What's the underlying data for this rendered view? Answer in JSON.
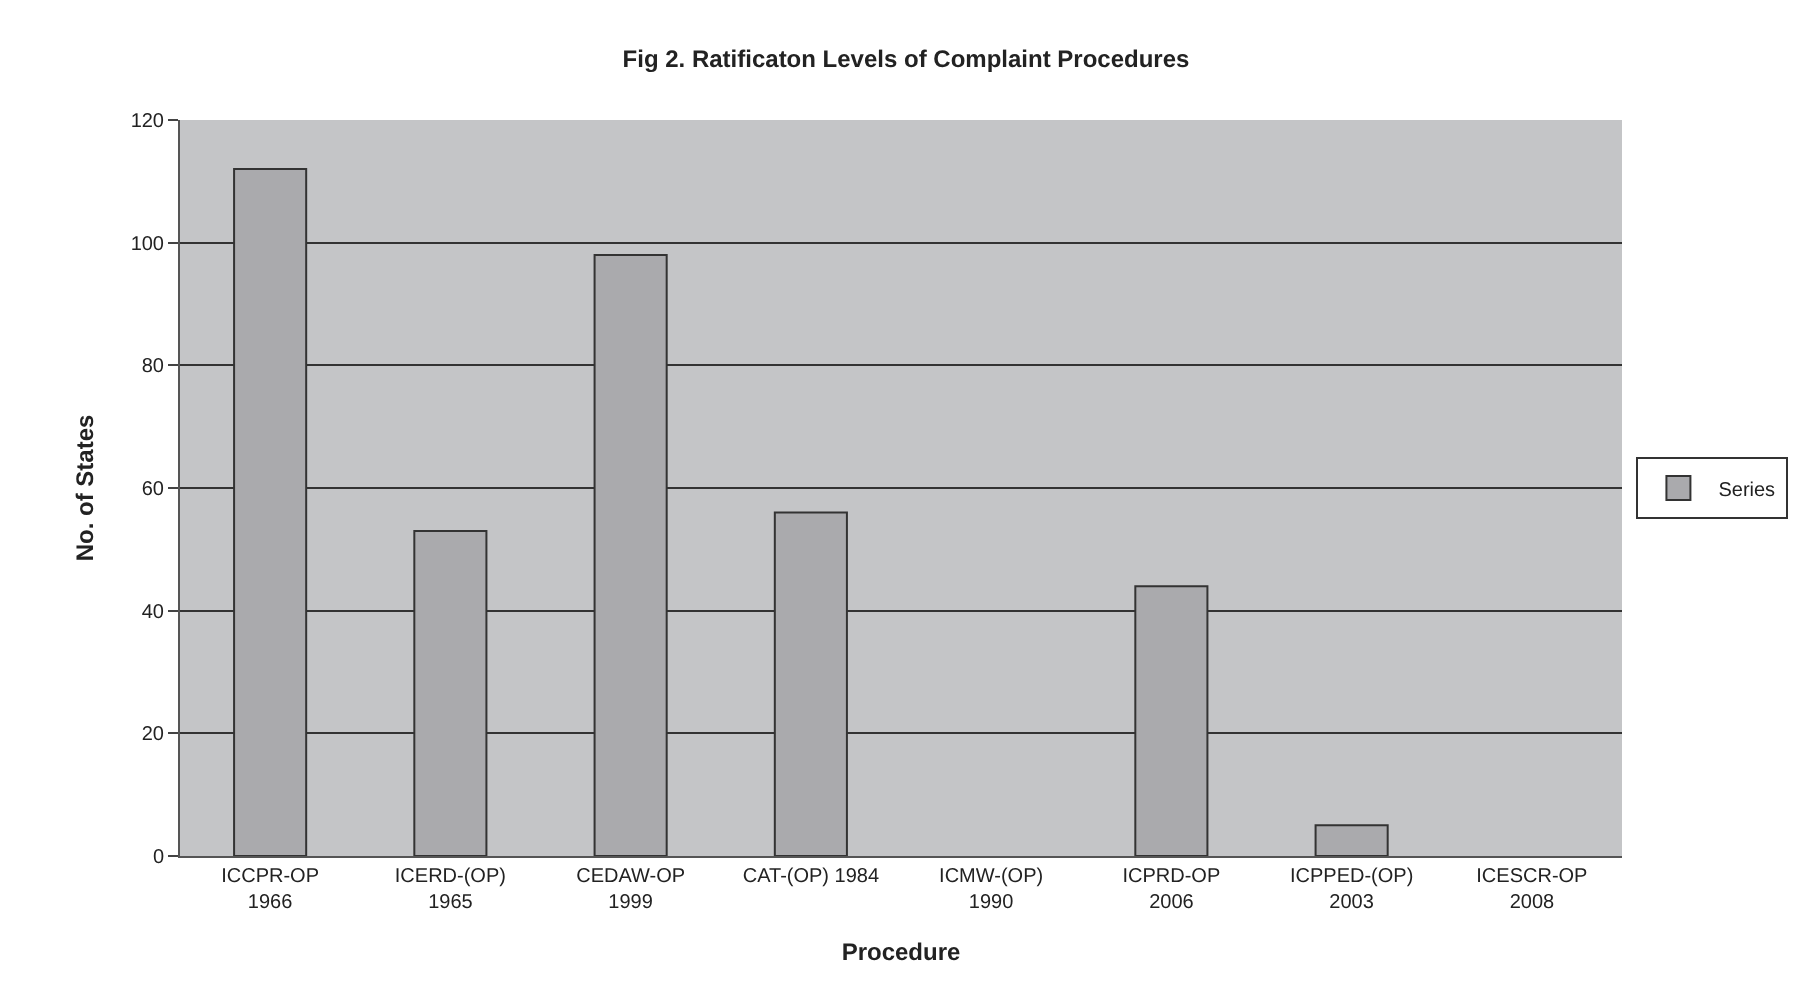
{
  "chart_data": {
    "type": "bar",
    "title": "Fig 2. Ratificaton Levels of Complaint Procedures",
    "xlabel": "Procedure",
    "ylabel": "No. of States",
    "categories": [
      "ICCPR-OP\n1966",
      "ICERD-(OP)\n1965",
      "CEDAW-OP\n1999",
      "CAT-(OP) 1984",
      "ICMW-(OP)\n1990",
      "ICPRD-OP\n2006",
      "ICPPED-(OP)\n2003",
      "ICESCR-OP\n2008"
    ],
    "series": [
      {
        "name": "Series",
        "color": "#aaaaad",
        "values": [
          112,
          53,
          98,
          56,
          0,
          44,
          5,
          0
        ]
      }
    ],
    "ylim": [
      0,
      120
    ],
    "yticks": [
      0,
      20,
      40,
      60,
      80,
      100,
      120
    ],
    "grid": "y",
    "legend": "right"
  }
}
